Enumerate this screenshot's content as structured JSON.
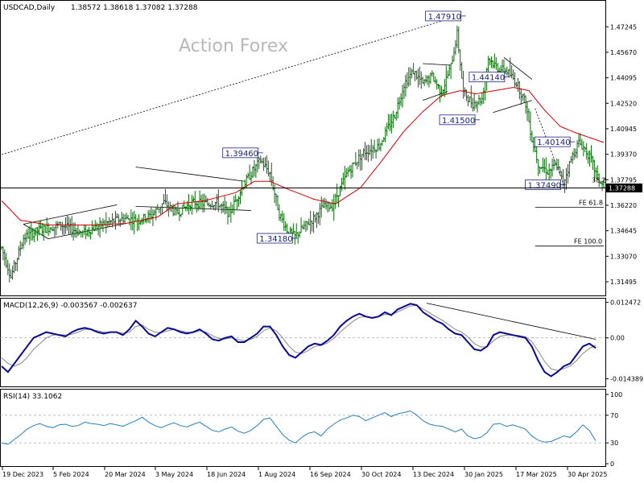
{
  "colors": {
    "price_bars": "#0d6b0d",
    "sma": "#d00000",
    "macd": "#0a0a8c",
    "signal": "#888888",
    "rsi": "#2680c2",
    "callout": "#1a237e",
    "watermark": "#b8b8b8",
    "trendline": "#000000"
  },
  "chart_data": [
    {
      "type": "ohlc",
      "title": "USDCAD,Daily",
      "ohlc_header": "1.38572 1.38618 1.37082 1.37288",
      "watermark": "Action Forex",
      "current_price": 1.37288,
      "current_price_label": "1.37288",
      "ylim": [
        1.308,
        1.487
      ],
      "y_ticks": [
        1.47245,
        1.4567,
        1.44095,
        1.4252,
        1.40945,
        1.3937,
        1.37795,
        1.3622,
        1.34645,
        1.3307,
        1.31495
      ],
      "y_tick_labels": [
        "1.47245",
        "1.45670",
        "1.44095",
        "1.42520",
        "1.40945",
        "1.39370",
        "1.37795",
        "1.36220",
        "1.34645",
        "1.33070",
        "1.31495"
      ],
      "x_labels": [
        "19 Dec 2023",
        "5 Feb 2024",
        "20 Mar 2024",
        "3 May 2024",
        "18 Jun 2024",
        "1 Aug 2024",
        "16 Sep 2024",
        "30 Oct 2024",
        "13 Dec 2024",
        "30 Jan 2025",
        "17 Mar 2025",
        "30 Apr 2025"
      ],
      "price_path": [
        [
          0,
          1.336
        ],
        [
          6,
          1.318
        ],
        [
          14,
          1.342
        ],
        [
          24,
          1.347
        ],
        [
          38,
          1.35
        ],
        [
          52,
          1.345
        ],
        [
          66,
          1.351
        ],
        [
          78,
          1.354
        ],
        [
          88,
          1.353
        ],
        [
          96,
          1.356
        ],
        [
          104,
          1.364
        ],
        [
          112,
          1.357
        ],
        [
          122,
          1.364
        ],
        [
          132,
          1.363
        ],
        [
          138,
          1.364
        ],
        [
          146,
          1.357
        ],
        [
          154,
          1.373
        ],
        [
          160,
          1.382
        ],
        [
          166,
          1.39
        ],
        [
          172,
          1.382
        ],
        [
          178,
          1.357
        ],
        [
          184,
          1.345
        ],
        [
          188,
          1.343
        ],
        [
          194,
          1.349
        ],
        [
          200,
          1.354
        ],
        [
          206,
          1.361
        ],
        [
          212,
          1.362
        ],
        [
          222,
          1.383
        ],
        [
          232,
          1.395
        ],
        [
          242,
          1.399
        ],
        [
          252,
          1.418
        ],
        [
          258,
          1.437
        ],
        [
          264,
          1.445
        ],
        [
          270,
          1.437
        ],
        [
          276,
          1.442
        ],
        [
          282,
          1.432
        ],
        [
          288,
          1.448
        ],
        [
          292,
          1.468
        ],
        [
          296,
          1.432
        ],
        [
          302,
          1.425
        ],
        [
          308,
          1.428
        ],
        [
          312,
          1.453
        ],
        [
          318,
          1.447
        ],
        [
          324,
          1.445
        ],
        [
          330,
          1.438
        ],
        [
          336,
          1.425
        ],
        [
          340,
          1.403
        ],
        [
          344,
          1.388
        ],
        [
          350,
          1.383
        ],
        [
          356,
          1.387
        ],
        [
          360,
          1.376
        ],
        [
          366,
          1.393
        ],
        [
          370,
          1.401
        ],
        [
          374,
          1.397
        ],
        [
          378,
          1.39
        ],
        [
          382,
          1.379
        ],
        [
          386,
          1.373
        ]
      ],
      "sma_path": [
        [
          0,
          1.365
        ],
        [
          12,
          1.353
        ],
        [
          30,
          1.35
        ],
        [
          60,
          1.35
        ],
        [
          80,
          1.351
        ],
        [
          100,
          1.355
        ],
        [
          112,
          1.363
        ],
        [
          130,
          1.365
        ],
        [
          150,
          1.37
        ],
        [
          162,
          1.377
        ],
        [
          172,
          1.377
        ],
        [
          184,
          1.372
        ],
        [
          200,
          1.366
        ],
        [
          214,
          1.363
        ],
        [
          230,
          1.373
        ],
        [
          244,
          1.39
        ],
        [
          258,
          1.408
        ],
        [
          270,
          1.42
        ],
        [
          282,
          1.43
        ],
        [
          294,
          1.433
        ],
        [
          304,
          1.431
        ],
        [
          316,
          1.433
        ],
        [
          328,
          1.435
        ],
        [
          338,
          1.433
        ],
        [
          348,
          1.421
        ],
        [
          358,
          1.411
        ],
        [
          368,
          1.407
        ],
        [
          380,
          1.403
        ],
        [
          386,
          1.401
        ]
      ],
      "callouts": [
        {
          "label": "1.47910",
          "x": 296,
          "y": 1.4791
        },
        {
          "label": "1.39460",
          "x": 166,
          "y": 1.3946
        },
        {
          "label": "1.34180",
          "x": 188,
          "y": 1.3418
        },
        {
          "label": "1.41500",
          "x": 305,
          "y": 1.415
        },
        {
          "label": "1.44140",
          "x": 324,
          "y": 1.4414
        },
        {
          "label": "1.40140",
          "x": 366,
          "y": 1.4014
        },
        {
          "label": "1.37490",
          "x": 360,
          "y": 1.3749
        }
      ],
      "fib_levels": [
        {
          "label": "38.2",
          "y": 1.3749
        },
        {
          "label": "FE 61.8",
          "y": 1.361
        },
        {
          "label": "FE 100.0",
          "y": 1.337
        }
      ]
    },
    {
      "type": "line",
      "title": "MACD(12,26,9) -0.003567 -0.002637",
      "ylim": [
        -0.0165,
        0.0135
      ],
      "y_ticks": [
        0.012472,
        0.0,
        -0.014389
      ],
      "y_tick_labels": [
        "0.012472",
        "0.00",
        "-0.014389"
      ],
      "series": [
        {
          "values": [
            -0.01,
            -0.012,
            -0.009,
            -0.006,
            -0.003,
            0.0,
            0.001,
            0.002,
            0.0015,
            0.001,
            0.0005,
            0.002,
            0.003,
            0.0035,
            0.003,
            0.002,
            0.0015,
            0.002,
            0.002,
            0.001,
            0.003,
            0.006,
            0.004,
            0.0015,
            0.0005,
            0.002,
            0.0035,
            0.003,
            0.002,
            0.0015,
            0.002,
            0.003,
            0.0015,
            -0.0005,
            -0.001,
            0.0,
            0.0005,
            -0.0015,
            -0.0015,
            0.0,
            0.0015,
            0.004,
            0.004,
            0.001,
            -0.003,
            -0.006,
            -0.007,
            -0.005,
            -0.003,
            -0.002,
            -0.0025,
            -0.001,
            0.001,
            0.004,
            0.006,
            0.0075,
            0.0085,
            0.0075,
            0.007,
            0.0075,
            0.009,
            0.008,
            0.01,
            0.011,
            0.012,
            0.0115,
            0.009,
            0.0075,
            0.006,
            0.005,
            0.003,
            0.0015,
            0.001,
            -0.0015,
            -0.004,
            -0.0045,
            -0.003,
            0.001,
            0.002,
            0.0015,
            0.001,
            0.0005,
            0.0,
            -0.003,
            -0.008,
            -0.012,
            -0.0135,
            -0.012,
            -0.01,
            -0.009,
            -0.006,
            -0.003,
            -0.002,
            -0.003567
          ]
        },
        {
          "values": [
            -0.007,
            -0.009,
            -0.01,
            -0.009,
            -0.007,
            -0.004,
            -0.002,
            0.0,
            0.001,
            0.0012,
            0.001,
            0.0013,
            0.002,
            0.003,
            0.003,
            0.0025,
            0.002,
            0.0019,
            0.002,
            0.0016,
            0.002,
            0.004,
            0.0045,
            0.003,
            0.002,
            0.0018,
            0.0025,
            0.003,
            0.0025,
            0.002,
            0.0018,
            0.0025,
            0.002,
            0.0008,
            -0.0002,
            -0.0004,
            0.0,
            -0.0006,
            -0.001,
            -0.0005,
            0.0005,
            0.0025,
            0.0035,
            0.0025,
            0.0,
            -0.003,
            -0.005,
            -0.0055,
            -0.0045,
            -0.003,
            -0.0027,
            -0.0018,
            -0.0002,
            0.002,
            0.004,
            0.0058,
            0.0072,
            0.0075,
            0.0072,
            0.0074,
            0.0082,
            0.0081,
            0.0091,
            0.0102,
            0.0112,
            0.0114,
            0.0101,
            0.0088,
            0.0074,
            0.0062,
            0.0046,
            0.003,
            0.002,
            0.0003,
            -0.002,
            -0.0032,
            -0.0031,
            -0.001,
            0.0005,
            0.001,
            0.001,
            0.0008,
            0.0004,
            -0.0013,
            -0.0046,
            -0.0083,
            -0.0109,
            -0.0115,
            -0.0108,
            -0.0099,
            -0.008,
            -0.0055,
            -0.0038,
            -0.002637
          ]
        }
      ],
      "trendline": [
        [
          530,
          0.0122
        ],
        [
          740,
          -0.0005
        ]
      ]
    },
    {
      "type": "line",
      "title": "RSI(14) 33.1062",
      "ylim": [
        0,
        100
      ],
      "y_ticks": [
        100,
        70,
        30,
        0
      ],
      "y_tick_labels": [
        "100",
        "70",
        "30",
        "0"
      ],
      "levels": [
        70,
        30
      ],
      "series": [
        {
          "values": [
            30,
            28,
            35,
            42,
            50,
            55,
            58,
            54,
            52,
            56,
            57,
            54,
            55,
            60,
            58,
            57,
            55,
            58,
            56,
            54,
            58,
            62,
            67,
            60,
            55,
            52,
            56,
            59,
            55,
            53,
            57,
            60,
            54,
            48,
            46,
            50,
            53,
            47,
            44,
            48,
            55,
            64,
            66,
            54,
            42,
            34,
            30,
            38,
            44,
            46,
            40,
            50,
            57,
            63,
            66,
            70,
            68,
            62,
            66,
            70,
            74,
            68,
            72,
            74,
            76,
            70,
            62,
            57,
            55,
            54,
            50,
            46,
            50,
            40,
            36,
            38,
            45,
            57,
            58,
            54,
            56,
            53,
            50,
            40,
            34,
            31,
            32,
            36,
            40,
            38,
            46,
            56,
            48,
            33.1062
          ]
        }
      ]
    }
  ]
}
